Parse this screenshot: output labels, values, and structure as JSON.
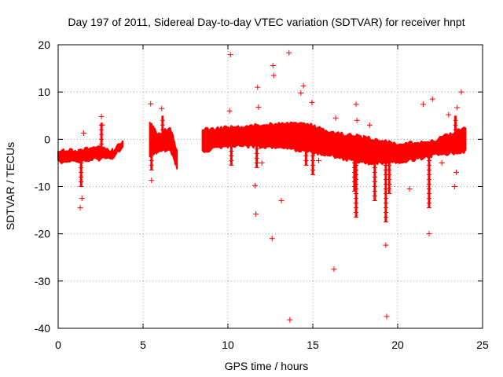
{
  "chart_data": {
    "type": "scatter",
    "title": "Day 197 of 2011, Sidereal Day-to-day VTEC variation (SDTVAR) for receiver hnpt",
    "xlabel": "GPS time / hours",
    "ylabel": "SDTVAR / TECUs",
    "xlim": [
      0,
      25
    ],
    "ylim": [
      -40,
      20
    ],
    "xticks": [
      0,
      5,
      10,
      15,
      20,
      25
    ],
    "yticks": [
      -40,
      -30,
      -20,
      -10,
      0,
      10,
      20
    ],
    "grid": true,
    "marker": "+",
    "series_color": "#ff0000",
    "outliers": [
      [
        1.3,
        -14.5
      ],
      [
        1.4,
        -12.5
      ],
      [
        1.5,
        1.3
      ],
      [
        2.55,
        4.8
      ],
      [
        2.6,
        3.0
      ],
      [
        5.45,
        7.5
      ],
      [
        5.5,
        -8.7
      ],
      [
        6.1,
        6.5
      ],
      [
        10.1,
        6.0
      ],
      [
        10.15,
        17.9
      ],
      [
        11.6,
        -9.8
      ],
      [
        11.65,
        -15.8
      ],
      [
        11.75,
        11.0
      ],
      [
        11.8,
        6.8
      ],
      [
        12.0,
        -5.0
      ],
      [
        12.6,
        -21.0
      ],
      [
        12.65,
        15.6
      ],
      [
        12.7,
        13.5
      ],
      [
        13.15,
        -13.0
      ],
      [
        13.6,
        18.3
      ],
      [
        13.65,
        -38.2
      ],
      [
        14.3,
        9.8
      ],
      [
        14.45,
        11.3
      ],
      [
        14.95,
        7.8
      ],
      [
        15.35,
        -4.5
      ],
      [
        16.25,
        -27.5
      ],
      [
        16.35,
        4.5
      ],
      [
        17.55,
        7.4
      ],
      [
        17.6,
        4.0
      ],
      [
        18.35,
        3.0
      ],
      [
        19.3,
        -22.4
      ],
      [
        19.35,
        -37.5
      ],
      [
        20.7,
        -10.5
      ],
      [
        21.5,
        7.4
      ],
      [
        21.85,
        -20.0
      ],
      [
        22.05,
        8.5
      ],
      [
        22.6,
        -5.0
      ],
      [
        23.0,
        5.2
      ],
      [
        23.35,
        -10.0
      ],
      [
        23.45,
        -7.0
      ],
      [
        23.5,
        6.7
      ],
      [
        23.75,
        10.0
      ]
    ]
  }
}
